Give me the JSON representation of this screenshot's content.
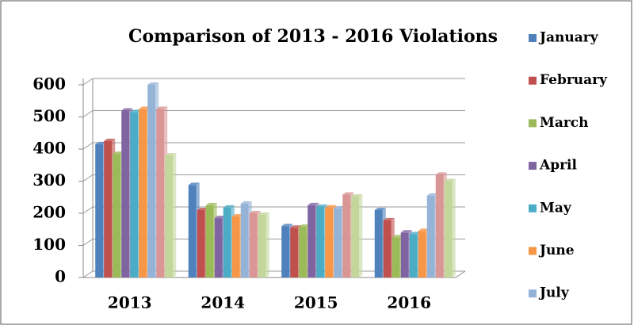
{
  "chart_data": {
    "type": "bar",
    "title": "Comparison of 2013 - 2016 Violations",
    "categories": [
      "2013",
      "2014",
      "2015",
      "2016"
    ],
    "series": [
      {
        "name": "January",
        "color": "#4f81bd",
        "values": [
          415,
          288,
          160,
          210
        ]
      },
      {
        "name": "February",
        "color": "#c0504d",
        "values": [
          425,
          210,
          155,
          178
        ]
      },
      {
        "name": "March",
        "color": "#9bbb59",
        "values": [
          385,
          225,
          158,
          125
        ]
      },
      {
        "name": "April",
        "color": "#8064a2",
        "values": [
          520,
          185,
          225,
          140
        ]
      },
      {
        "name": "May",
        "color": "#4bacc6",
        "values": [
          515,
          218,
          220,
          135
        ]
      },
      {
        "name": "June",
        "color": "#f79646",
        "values": [
          525,
          190,
          218,
          145
        ]
      },
      {
        "name": "July",
        "color": "#95b3d7",
        "values": [
          600,
          230,
          215,
          255
        ]
      },
      {
        "color": "#d99694",
        "values": [
          525,
          200,
          258,
          320
        ]
      },
      {
        "color": "#c3d69b",
        "values": [
          380,
          195,
          252,
          300
        ]
      }
    ],
    "ylim": [
      0,
      600
    ],
    "yticks": [
      0,
      100,
      200,
      300,
      400,
      500,
      600
    ],
    "grid": true
  }
}
